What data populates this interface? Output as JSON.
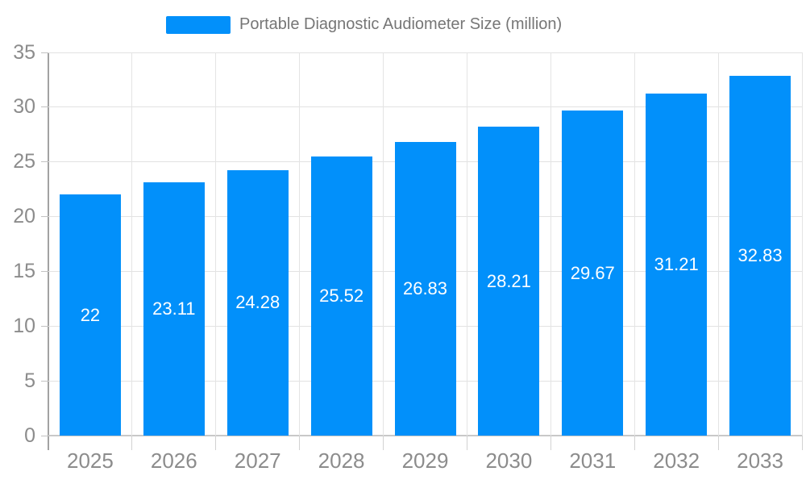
{
  "legend": {
    "label": "Portable Diagnostic Audiometer Size (million)"
  },
  "chart_data": {
    "type": "bar",
    "title": "Portable Diagnostic Audiometer Size (million)",
    "categories": [
      "2025",
      "2026",
      "2027",
      "2028",
      "2029",
      "2030",
      "2031",
      "2032",
      "2033"
    ],
    "values": [
      22,
      23.11,
      24.28,
      25.52,
      26.83,
      28.21,
      29.67,
      31.21,
      32.83
    ],
    "value_labels": [
      "22",
      "23.11",
      "24.28",
      "25.52",
      "26.83",
      "28.21",
      "29.67",
      "31.21",
      "32.83"
    ],
    "xlabel": "",
    "ylabel": "",
    "ylim": [
      0,
      35
    ],
    "yticks": [
      0,
      5,
      10,
      15,
      20,
      25,
      30,
      35
    ],
    "grid": true,
    "legend_position": "top",
    "value_label_position": "inside-center",
    "colors": {
      "bar": "#0290fa",
      "value_label": "#ffffff",
      "axis_label": "#8c8c8c",
      "legend_text": "#767676",
      "gridline": "#e2e2e2",
      "x_axis_line": "#c8c8c8",
      "y_axis_line": "#a2a2a2",
      "background": "#ffffff"
    }
  }
}
